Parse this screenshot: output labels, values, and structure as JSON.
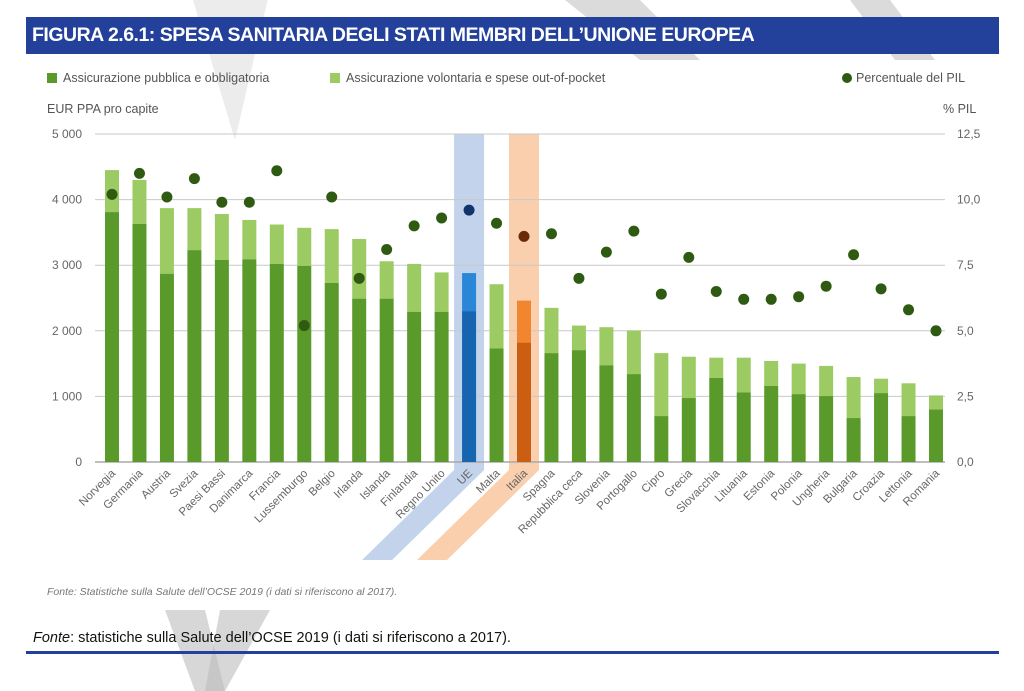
{
  "figure_title": "FIGURA 2.6.1: SPESA SANITARIA DEGLI STATI MEMBRI DELL’UNIONE EUROPEA",
  "colors": {
    "banner": "#23409a",
    "public": "#5a9a2a",
    "voluntary": "#9ccb63",
    "dot": "#2f5a12",
    "ue_public": "#1565b0",
    "ue_voluntary": "#2a86d6",
    "ue_band": "#b7cbe8",
    "ue_dot": "#12346b",
    "it_public": "#cc5e12",
    "it_voluntary": "#f2852f",
    "it_band": "#f8c7a0",
    "it_dot": "#6a2a08"
  },
  "chart_data": {
    "type": "bar",
    "stacked": true,
    "title": "FIGURA 2.6.1: SPESA SANITARIA DEGLI STATI MEMBRI DELL’UNIONE EUROPEA",
    "ylabel": "EUR PPA pro capite",
    "y2label": "% PIL",
    "ylim": [
      0,
      5000
    ],
    "y2lim": [
      0,
      12.5
    ],
    "yticks": [
      "0",
      "1 000",
      "2 000",
      "3 000",
      "4 000",
      "5 000"
    ],
    "y2ticks": [
      "0,0",
      "2,5",
      "5,0",
      "7,5",
      "10,0",
      "12,5"
    ],
    "grid": true,
    "legend": [
      {
        "label": "Assicurazione pubblica e obbligatoria",
        "type": "bar"
      },
      {
        "label": "Assicurazione volontaria e spese out-of-pocket",
        "type": "bar"
      },
      {
        "label": "Percentuale del PIL",
        "type": "dot"
      }
    ],
    "legend_position": "top",
    "highlighted": [
      "UE",
      "Italia"
    ],
    "categories": [
      "Norvegia",
      "Germania",
      "Austria",
      "Svezia",
      "Paesi Bassi",
      "Danimarca",
      "Francia",
      "Lussemburgo",
      "Belgio",
      "Irlanda",
      "Islanda",
      "Finlandia",
      "Regno Unito",
      "UE",
      "Malta",
      "Italia",
      "Spagna",
      "Repubblica ceca",
      "Slovenia",
      "Portogallo",
      "Cipro",
      "Grecia",
      "Slovacchia",
      "Lituania",
      "Estonia",
      "Polonia",
      "Ungheria",
      "Bulgaria",
      "Croazia",
      "Lettonia",
      "Romania"
    ],
    "series": [
      {
        "name": "Assicurazione pubblica e obbligatoria",
        "axis": "left",
        "values": [
          3810,
          3630,
          2870,
          3230,
          3080,
          3090,
          3020,
          2990,
          2730,
          2490,
          2490,
          2290,
          2290,
          2300,
          1730,
          1820,
          1660,
          1705,
          1475,
          1340,
          700,
          975,
          1280,
          1060,
          1160,
          1035,
          1005,
          670,
          1050,
          700,
          800
        ]
      },
      {
        "name": "Assicurazione volontaria e spese out-of-pocket",
        "axis": "left",
        "values": [
          640,
          670,
          1000,
          640,
          700,
          600,
          600,
          580,
          820,
          910,
          570,
          730,
          600,
          580,
          980,
          640,
          690,
          375,
          580,
          665,
          960,
          630,
          310,
          530,
          380,
          465,
          460,
          625,
          220,
          500,
          215
        ]
      },
      {
        "name": "Percentuale del PIL",
        "axis": "right",
        "type": "scatter",
        "values": [
          10.2,
          11.0,
          10.1,
          10.8,
          9.9,
          9.9,
          11.1,
          5.2,
          10.1,
          7.0,
          8.1,
          9.0,
          9.3,
          9.6,
          9.1,
          8.6,
          8.7,
          7.0,
          8.0,
          8.8,
          6.4,
          7.8,
          6.5,
          6.2,
          6.2,
          6.3,
          6.7,
          7.9,
          6.6,
          5.8,
          5.0
        ]
      }
    ],
    "source": "Fonte: Statistiche sulla Salute dell’OCSE 2019 (i dati si riferiscono al 2017)."
  },
  "doc_source": {
    "label": "Fonte",
    "text": ": statistiche sulla Salute dell’OCSE 2019 (i dati si riferiscono a 2017)."
  }
}
